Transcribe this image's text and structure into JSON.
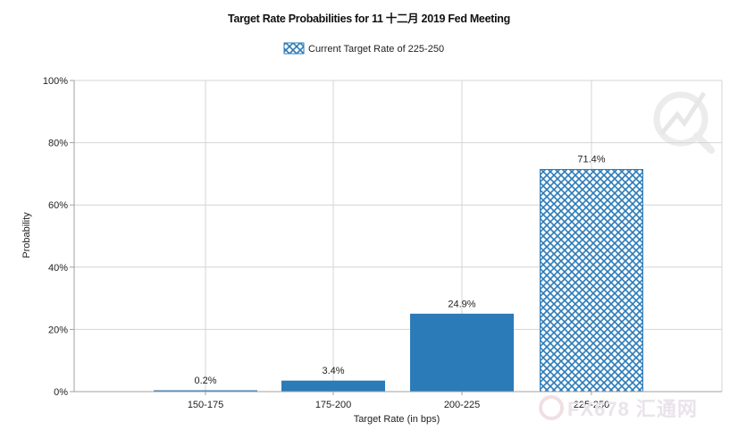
{
  "chart_data": {
    "type": "bar",
    "title": "Target Rate Probabilities for 11 十二月 2019  Fed Meeting",
    "xlabel": "Target Rate (in bps)",
    "ylabel": "Probability",
    "categories": [
      "150-175",
      "175-200",
      "200-225",
      "225-250"
    ],
    "values": [
      0.2,
      3.4,
      24.9,
      71.4
    ],
    "data_labels": [
      "0.2%",
      "3.4%",
      "24.9%",
      "71.4%"
    ],
    "highlight_index": 3,
    "ylim": [
      0,
      100
    ],
    "yticks": [
      0,
      20,
      40,
      60,
      80,
      100
    ],
    "ytick_labels": [
      "0%",
      "20%",
      "40%",
      "60%",
      "80%",
      "100%"
    ],
    "grid": true,
    "legend": {
      "position": "top-center",
      "entries": [
        "Current Target Rate of 225-250"
      ]
    },
    "colors": {
      "bar": "#2b7bb9",
      "hatch_bg": "#ffffff",
      "grid": "#d4d4d4",
      "axis": "#a0a0a0"
    }
  },
  "watermark": {
    "text": "FX678 汇通网"
  }
}
